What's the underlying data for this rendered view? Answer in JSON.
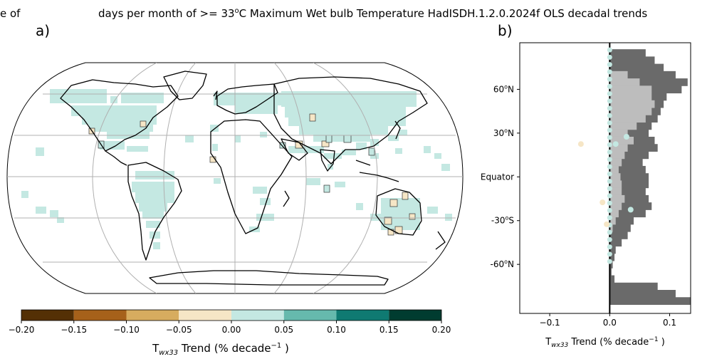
{
  "figure": {
    "title_left": "e of",
    "title_main_pre": "days per month of >= 33",
    "title_sup": "o",
    "title_main_post": "C Maximum Wet bulb Temperature HadISDH.1.2.0.2024f OLS decadal trends",
    "panel_a_label": "a)",
    "panel_b_label": "b)"
  },
  "chart_data": [
    {
      "type": "heatmap",
      "panel": "a",
      "description_scope": "global map of grid-box trends",
      "colorbar": {
        "ticks": [
          "-0.20",
          "-0.15",
          "-0.10",
          "-0.05",
          "0.00",
          "0.05",
          "0.10",
          "0.15",
          "0.20"
        ],
        "bins": [
          -0.2,
          -0.15,
          -0.1,
          -0.05,
          0.0,
          0.05,
          0.1,
          0.15,
          0.2
        ],
        "colors": [
          "#543005",
          "#a6611a",
          "#d7ac5f",
          "#f6e6c6",
          "#c4e8e2",
          "#66b9ad",
          "#0f7a72",
          "#003c30"
        ],
        "label_pre": "T",
        "label_sub": "wx33",
        "label_mid": " Trend (% decade",
        "label_sup": "−1",
        "label_post": " )"
      },
      "cell_categories": {
        "positive_small": {
          "value_range": [
            0.0,
            0.05
          ],
          "color": "#c4e8e2"
        },
        "negative_small": {
          "value_range": [
            -0.05,
            0.0
          ],
          "color": "#f6e6c6"
        }
      }
    },
    {
      "type": "bar",
      "panel": "b",
      "orientation": "horizontal",
      "xlim": [
        -0.15,
        0.135
      ],
      "xticks": [
        "−0.1",
        "0.0",
        "0.1"
      ],
      "ytick_labels": [
        "60",
        "30",
        "Equator",
        "-30",
        "-60"
      ],
      "ytick_suffixes": [
        "N",
        "N",
        "",
        "S",
        "N"
      ],
      "xlabel_pre": "T",
      "xlabel_sub": "wx33",
      "xlabel_mid": " Trend (% decade",
      "xlabel_sup": "−1",
      "xlabel_post": " )",
      "series": [
        {
          "color": "#6a6a6a",
          "lat": [
            85,
            80,
            75,
            70,
            65,
            60,
            55,
            50,
            45,
            40,
            35,
            30,
            25,
            20,
            15,
            10,
            5,
            0,
            -5,
            -10,
            -15,
            -20,
            -25,
            -30,
            -35,
            -40,
            -45,
            -50,
            -55,
            -60,
            -65,
            -70,
            -75,
            -80,
            -85
          ],
          "values": [
            0.06,
            0.075,
            0.09,
            0.11,
            0.13,
            0.12,
            0.095,
            0.09,
            0.085,
            0.08,
            0.07,
            0.065,
            0.075,
            0.08,
            0.065,
            0.055,
            0.06,
            0.065,
            0.065,
            0.06,
            0.065,
            0.07,
            0.06,
            0.04,
            0.035,
            0.03,
            0.02,
            0.01,
            0.008,
            0.005,
            0.003,
            0.008,
            0.08,
            0.11,
            0.135
          ]
        },
        {
          "color": "#bdbdbd",
          "lat": [
            70,
            65,
            60,
            55,
            50,
            45,
            40,
            35,
            30,
            25,
            20,
            15,
            10,
            5,
            0,
            -5,
            -10,
            -15,
            -20,
            -25,
            -30,
            -35
          ],
          "values": [
            0.03,
            0.05,
            0.07,
            0.07,
            0.075,
            0.07,
            0.06,
            0.045,
            0.03,
            0.04,
            0.03,
            0.025,
            0.02,
            0.015,
            0.018,
            0.02,
            0.02,
            0.025,
            0.02,
            0.015,
            0.01,
            0.005
          ]
        }
      ],
      "points": [
        {
          "x": -0.048,
          "lat": 22.5,
          "color": "#f6e6c6"
        },
        {
          "x": -0.012,
          "lat": -17.5,
          "color": "#f6e6c6"
        },
        {
          "x": 0.028,
          "lat": 27.5,
          "color": "#c4e8e2"
        },
        {
          "x": 0.035,
          "lat": -22.5,
          "color": "#c4e8e2"
        },
        {
          "x": 0.01,
          "lat": 22.5,
          "color": "#c4e8e2"
        },
        {
          "x": -0.005,
          "lat": -32.5,
          "color": "#f6e6c6"
        }
      ]
    }
  ]
}
